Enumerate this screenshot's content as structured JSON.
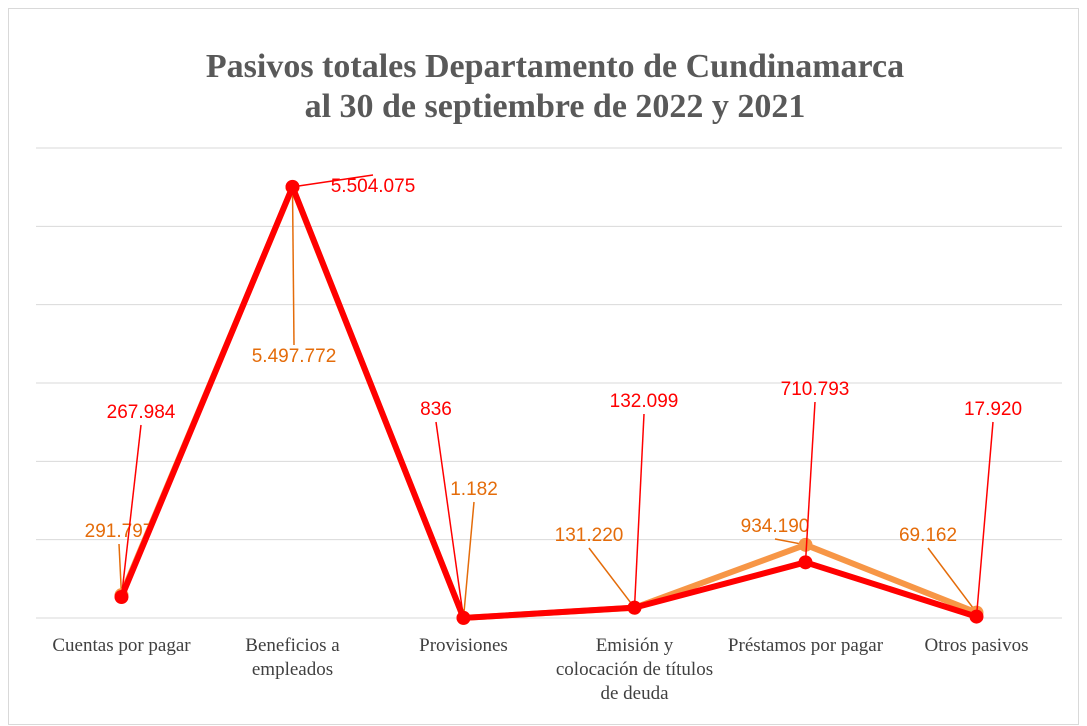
{
  "chart_data": {
    "type": "line",
    "title": "Pasivos totales Departamento de Cundinamarca",
    "subtitle": "al 30 de septiembre de 2022 y 2021",
    "categories": [
      "Cuentas por pagar",
      "Beneficios a empleados",
      "Provisiones",
      "Emisión y colocación de títulos de deuda",
      "Préstamos por pagar",
      "Otros pasivos"
    ],
    "series": [
      {
        "color": "#f79646",
        "label_color": "#e46c0a",
        "values": [
          291797,
          5497772,
          1182,
          131220,
          934190,
          69162
        ],
        "value_labels": [
          "291.797",
          "5.497.772",
          "1.182",
          "131.220",
          "934.190",
          "69.162"
        ]
      },
      {
        "color": "#ff0000",
        "label_color": "#ff0000",
        "values": [
          267984,
          5504075,
          836,
          132099,
          710793,
          17920
        ],
        "value_labels": [
          "267.984",
          "5.504.075",
          "836",
          "132.099",
          "710.793",
          "17.920"
        ]
      }
    ],
    "ylim": [
      0,
      6000000
    ],
    "yticks": [
      0,
      1000000,
      2000000,
      3000000,
      4000000,
      5000000,
      6000000
    ],
    "grid": true
  }
}
